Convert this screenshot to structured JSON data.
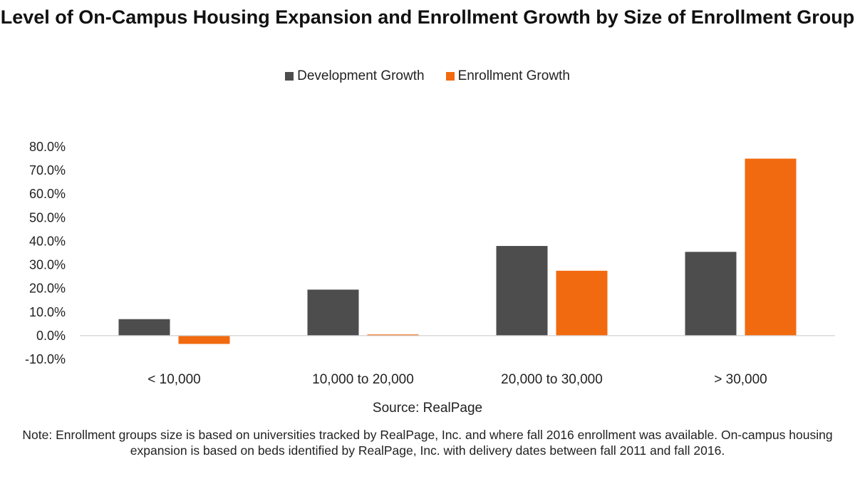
{
  "chart_data": {
    "type": "bar",
    "title": "Level of On-Campus Housing Expansion and Enrollment Growth by Size of Enrollment Group",
    "categories": [
      "< 10,000",
      "10,000 to 20,000",
      "20,000 to 30,000",
      "> 30,000"
    ],
    "series": [
      {
        "name": "Development Growth",
        "color": "#4d4d4d",
        "values": [
          7.0,
          19.5,
          38.0,
          35.5
        ]
      },
      {
        "name": "Enrollment Growth",
        "color": "#f26a0f",
        "values": [
          -3.5,
          0.5,
          27.5,
          75.0
        ]
      }
    ],
    "ylim": [
      -10,
      80
    ],
    "yticks": [
      80,
      70,
      60,
      50,
      40,
      30,
      20,
      10,
      0,
      -10
    ],
    "ytick_labels": [
      "80.0%",
      "70.0%",
      "60.0%",
      "50.0%",
      "40.0%",
      "30.0%",
      "20.0%",
      "10.0%",
      "0.0%",
      "-10.0%"
    ],
    "legend_position": "top-center",
    "grid": false
  },
  "source": "Source: RealPage",
  "note": "Note: Enrollment groups size is based on universities tracked by RealPage, Inc. and where fall 2016 enrollment was available. On-campus housing expansion is based on beds identified by RealPage, Inc. with delivery dates between fall 2011 and fall 2016."
}
